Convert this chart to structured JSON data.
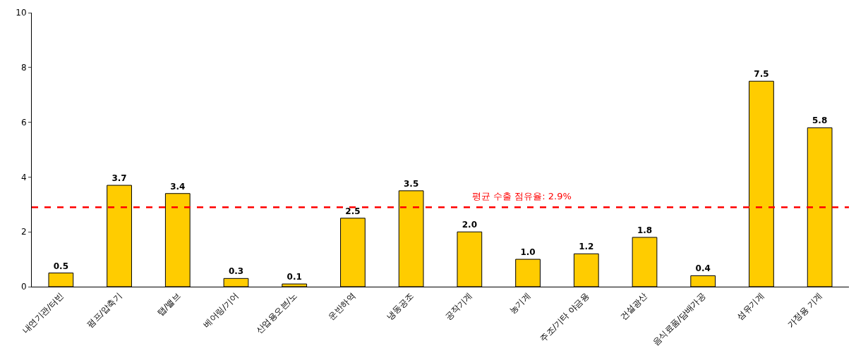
{
  "chart_data": {
    "type": "bar",
    "categories": [
      "내연기관/터빈",
      "펌프/압축기",
      "탭/밸브",
      "베어링/기어",
      "산업용오븐/노",
      "운반하역",
      "냉동공조",
      "공작기계",
      "농기계",
      "주조/기타 야금용",
      "건설광산",
      "음식료품/담배가공",
      "섬유기계",
      "가정용 기계"
    ],
    "values": [
      0.5,
      3.7,
      3.4,
      0.3,
      0.1,
      2.5,
      3.5,
      2.0,
      1.0,
      1.2,
      1.8,
      0.4,
      7.5,
      5.8
    ],
    "value_labels": [
      "0.5",
      "3.7",
      "3.4",
      "0.3",
      "0.1",
      "2.5",
      "3.5",
      "2.0",
      "1.0",
      "1.2",
      "1.8",
      "0.4",
      "7.5",
      "5.8"
    ],
    "color": "#ffcc00",
    "ylim": [
      0,
      10
    ],
    "yticks": [
      0,
      2,
      4,
      6,
      8,
      10
    ],
    "ref_lines": [
      {
        "axis": "y",
        "value": 2.9,
        "label": "평균 수출 점유율: 2.9%",
        "color": "#ff0000",
        "line_style": "dashed"
      }
    ],
    "data_labels": true
  }
}
